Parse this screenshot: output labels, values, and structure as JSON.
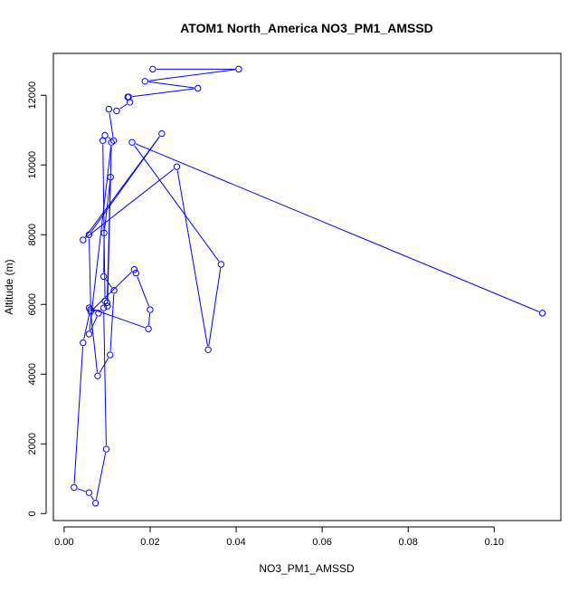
{
  "chart_data": {
    "type": "line",
    "title": "ATOM1 North_America NO3_PM1_AMSSD",
    "xlabel": "NO3_PM1_AMSSD",
    "ylabel": "Altitude (m)",
    "xlim": [
      -0.0025,
      0.1155
    ],
    "ylim": [
      -200,
      13200
    ],
    "xticks": [
      0.0,
      0.02,
      0.04,
      0.06,
      0.08,
      0.1
    ],
    "xtick_labels": [
      "0.00",
      "0.02",
      "0.04",
      "0.06",
      "0.08",
      "0.10"
    ],
    "yticks": [
      0,
      2000,
      4000,
      6000,
      8000,
      10000,
      12000
    ],
    "ytick_labels": [
      "0",
      "2000",
      "4000",
      "6000",
      "8000",
      "10000",
      "12000"
    ],
    "grid": false,
    "legend": "none",
    "markers": "open-circle",
    "color": "#0000ff",
    "series": [
      {
        "x": [
          0.0206,
          0.0406,
          0.0188,
          0.0311,
          0.015,
          0.0148,
          0.0153,
          0.0122,
          0.0104,
          0.0115,
          0.0095,
          0.009,
          0.0095,
          0.0101,
          0.0108,
          0.0093,
          0.0092,
          0.0116,
          0.0107,
          0.0078,
          0.0061,
          0.0044,
          0.0023,
          0.0058,
          0.0073,
          0.0098,
          0.0092,
          0.01,
          0.011,
          0.0058,
          0.008,
          0.0058,
          0.0196,
          0.02,
          0.0167,
          0.0163,
          0.0062,
          0.0058,
          0.0227,
          0.0044,
          0.0262,
          0.0335,
          0.0365,
          0.0158,
          0.1112
        ],
        "y": [
          12750,
          12750,
          12400,
          12200,
          11950,
          11950,
          11800,
          11550,
          11600,
          10700,
          10850,
          10700,
          6100,
          5950,
          9650,
          8050,
          6800,
          6400,
          4550,
          3950,
          5850,
          4900,
          750,
          600,
          300,
          1850,
          5900,
          6050,
          10650,
          5150,
          5750,
          5900,
          5300,
          5850,
          6900,
          7000,
          5800,
          8000,
          10900,
          7850,
          9950,
          4700,
          7150,
          10650,
          5750
        ]
      }
    ]
  }
}
